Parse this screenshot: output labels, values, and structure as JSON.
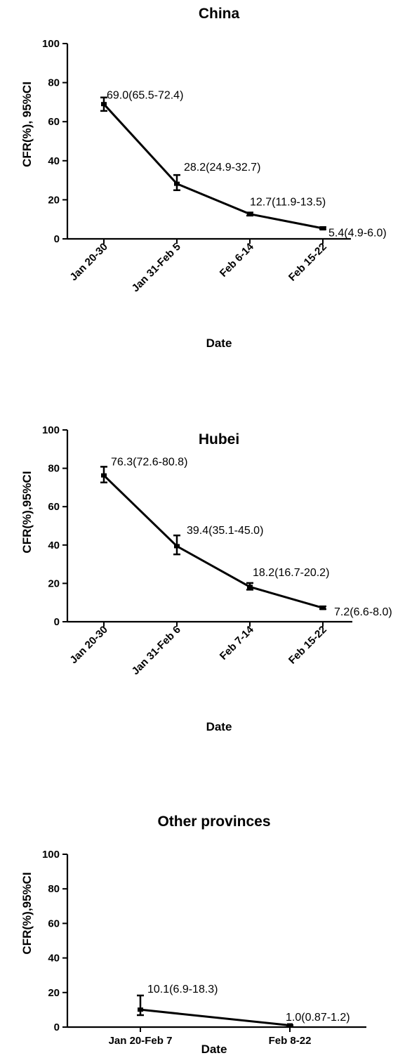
{
  "chart_data": [
    {
      "type": "line",
      "title": "China",
      "xlabel": "Date",
      "ylabel": "CFR(%),  95%CI",
      "ylim": [
        0,
        100
      ],
      "yticks": [
        "0",
        "20",
        "40",
        "60",
        "80",
        "100"
      ],
      "categories": [
        "Jan 20-30",
        "Jan 31-Feb 5",
        "Feb 6-14",
        "Feb 15-22"
      ],
      "series": [
        {
          "values": [
            69.0,
            28.2,
            12.7,
            5.4
          ],
          "ci_low": [
            65.5,
            24.9,
            11.9,
            4.9
          ],
          "ci_high": [
            72.4,
            32.7,
            13.5,
            6.0
          ],
          "labels": [
            "69.0(65.5-72.4)",
            "28.2(24.9-32.7)",
            "12.7(11.9-13.5)",
            "5.4(4.9-6.0)"
          ]
        }
      ],
      "grid": false
    },
    {
      "type": "line",
      "title": "Hubei",
      "xlabel": "Date",
      "ylabel": "CFR(%),95%CI",
      "ylim": [
        0,
        100
      ],
      "yticks": [
        "0",
        "20",
        "40",
        "60",
        "80",
        "100"
      ],
      "categories": [
        "Jan 20-30",
        "Jan 31-Feb 6",
        "Feb 7-14",
        "Feb 15-22"
      ],
      "series": [
        {
          "values": [
            76.3,
            39.4,
            18.2,
            7.2
          ],
          "ci_low": [
            72.6,
            35.1,
            16.7,
            6.6
          ],
          "ci_high": [
            80.8,
            45.0,
            20.2,
            8.0
          ],
          "labels": [
            "76.3(72.6-80.8)",
            "39.4(35.1-45.0)",
            "18.2(16.7-20.2)",
            "7.2(6.6-8.0)"
          ]
        }
      ],
      "grid": false
    },
    {
      "type": "line",
      "title": "Other provinces",
      "xlabel": "Date",
      "ylabel": "CFR(%),95%CI",
      "ylim": [
        0,
        100
      ],
      "yticks": [
        "0",
        "20",
        "40",
        "60",
        "80",
        "100"
      ],
      "categories": [
        "Jan 20-Feb 7",
        "Feb 8-22"
      ],
      "series": [
        {
          "values": [
            10.1,
            1.0
          ],
          "ci_low": [
            6.9,
            0.87
          ],
          "ci_high": [
            18.3,
            1.2
          ],
          "labels": [
            "10.1(6.9-18.3)",
            "1.0(0.87-1.2)"
          ]
        }
      ],
      "grid": false
    }
  ]
}
